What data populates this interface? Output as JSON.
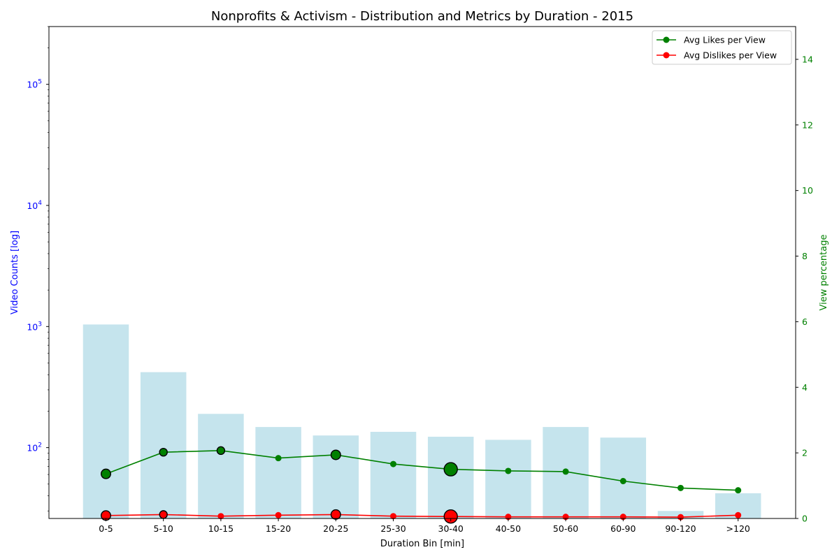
{
  "chart_data": {
    "type": "bar+line",
    "title": "Nonprofits & Activism - Distribution and Metrics by Duration - 2015",
    "xlabel": "Duration Bin [min]",
    "categories": [
      "0-5",
      "5-10",
      "10-15",
      "15-20",
      "20-25",
      "25-30",
      "30-40",
      "40-50",
      "50-60",
      "60-90",
      "90-120",
      ">120"
    ],
    "bars": {
      "name": "Video Counts",
      "axis": "left",
      "values": [
        1040,
        420,
        190,
        148,
        126,
        135,
        123,
        116,
        148,
        121,
        30,
        42
      ],
      "color": "#add8e6"
    },
    "left_axis": {
      "label": "Video Counts [log]",
      "scale": "log",
      "range": [
        26,
        300000
      ],
      "ticks": [
        {
          "value": 100,
          "base": "10",
          "exp": "2"
        },
        {
          "value": 1000,
          "base": "10",
          "exp": "3"
        },
        {
          "value": 10000,
          "base": "10",
          "exp": "4"
        },
        {
          "value": 100000,
          "base": "10",
          "exp": "5"
        }
      ],
      "color": "#0000ff"
    },
    "right_axis": {
      "label": "View percentage",
      "scale": "linear",
      "range": [
        0,
        15
      ],
      "ticks": [
        "0",
        "2",
        "4",
        "6",
        "8",
        "10",
        "12",
        "14"
      ],
      "color": "#008000"
    },
    "series": [
      {
        "name": "Avg Likes per View",
        "axis": "right",
        "color": "#008000",
        "values": [
          1.36,
          2.02,
          2.07,
          1.84,
          1.94,
          1.66,
          1.5,
          1.45,
          1.43,
          1.14,
          0.93,
          0.86
        ],
        "highlighted": [
          {
            "index": 0,
            "size": "medium"
          },
          {
            "index": 1,
            "size": "small"
          },
          {
            "index": 2,
            "size": "small"
          },
          {
            "index": 4,
            "size": "medium"
          },
          {
            "index": 6,
            "size": "large"
          }
        ]
      },
      {
        "name": "Avg Dislikes per View",
        "axis": "right",
        "color": "#ff0000",
        "values": [
          0.09,
          0.12,
          0.07,
          0.1,
          0.12,
          0.07,
          0.06,
          0.05,
          0.05,
          0.05,
          0.04,
          0.1
        ],
        "highlighted": [
          {
            "index": 0,
            "size": "medium"
          },
          {
            "index": 1,
            "size": "small"
          },
          {
            "index": 4,
            "size": "medium"
          },
          {
            "index": 6,
            "size": "large"
          }
        ]
      }
    ],
    "legend": {
      "placement": "top-right"
    },
    "grid": false
  }
}
